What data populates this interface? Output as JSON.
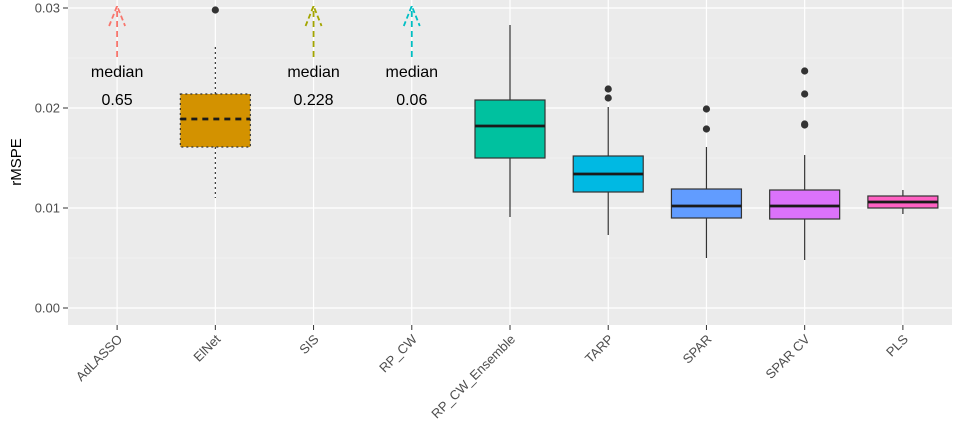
{
  "chart_data": {
    "type": "boxplot",
    "title": "",
    "xlabel": "",
    "ylabel": "rMSPE",
    "ylim": [
      0,
      0.03
    ],
    "yticks": [
      0.0,
      0.01,
      0.02,
      0.03
    ],
    "ytick_labels": [
      "0.00",
      "0.01",
      "0.02",
      "0.03"
    ],
    "grid": true,
    "categories": [
      "AdLASSO",
      "ElNet",
      "SIS",
      "RP_CW",
      "RP_CW_Ensemble",
      "TARP",
      "SPAR",
      "SPAR CV",
      "PLS"
    ],
    "boxes": [
      {
        "name": "ElNet",
        "color": "#D39200",
        "dashed": true,
        "q1": 0.0161,
        "median": 0.0189,
        "q3": 0.0214,
        "whisker_low": 0.011,
        "whisker_high": 0.0261,
        "outliers": [
          0.0298
        ]
      },
      {
        "name": "RP_CW_Ensemble",
        "color": "#00C19F",
        "dashed": false,
        "q1": 0.015,
        "median": 0.0182,
        "q3": 0.0208,
        "whisker_low": 0.0091,
        "whisker_high": 0.0283,
        "outliers": []
      },
      {
        "name": "TARP",
        "color": "#00B9E3",
        "dashed": false,
        "q1": 0.0116,
        "median": 0.0134,
        "q3": 0.0152,
        "whisker_low": 0.0073,
        "whisker_high": 0.0201,
        "outliers": [
          0.021,
          0.0219
        ]
      },
      {
        "name": "SPAR",
        "color": "#619CFF",
        "dashed": false,
        "q1": 0.009,
        "median": 0.0102,
        "q3": 0.0119,
        "whisker_low": 0.005,
        "whisker_high": 0.0161,
        "outliers": [
          0.0179,
          0.0199
        ]
      },
      {
        "name": "SPAR CV",
        "color": "#DB72FB",
        "dashed": false,
        "q1": 0.0089,
        "median": 0.0102,
        "q3": 0.0118,
        "whisker_low": 0.0048,
        "whisker_high": 0.0153,
        "outliers": [
          0.0183,
          0.0184,
          0.0214,
          0.0237
        ]
      },
      {
        "name": "PLS",
        "color": "#FF61C3",
        "dashed": false,
        "q1": 0.01,
        "median": 0.0106,
        "q3": 0.0112,
        "whisker_low": 0.0094,
        "whisker_high": 0.0118,
        "outliers": []
      }
    ],
    "offscale": [
      {
        "name": "AdLASSO",
        "color": "#F8766D",
        "label": "median",
        "value": "0.65"
      },
      {
        "name": "SIS",
        "color": "#A3A500",
        "label": "median",
        "value": "0.228"
      },
      {
        "name": "RP_CW",
        "color": "#00BFC4",
        "label": "median",
        "value": "0.06"
      }
    ]
  }
}
